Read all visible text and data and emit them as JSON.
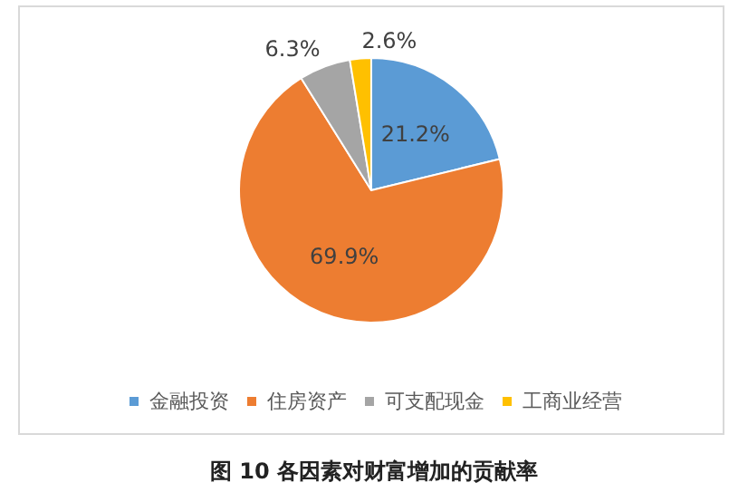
{
  "chart_data": {
    "type": "pie",
    "title": "图 10 各因素对财富增加的贡献率",
    "categories": [
      "金融投资",
      "住房资产",
      "可支配现金",
      "工商业经营"
    ],
    "values": [
      21.2,
      69.9,
      6.3,
      2.6
    ],
    "value_labels": [
      "21.2%",
      "69.9%",
      "6.3%",
      "2.6%"
    ],
    "colors": [
      "#5b9bd5",
      "#ed7d31",
      "#a5a5a5",
      "#ffc000"
    ],
    "legend": "bottom"
  }
}
